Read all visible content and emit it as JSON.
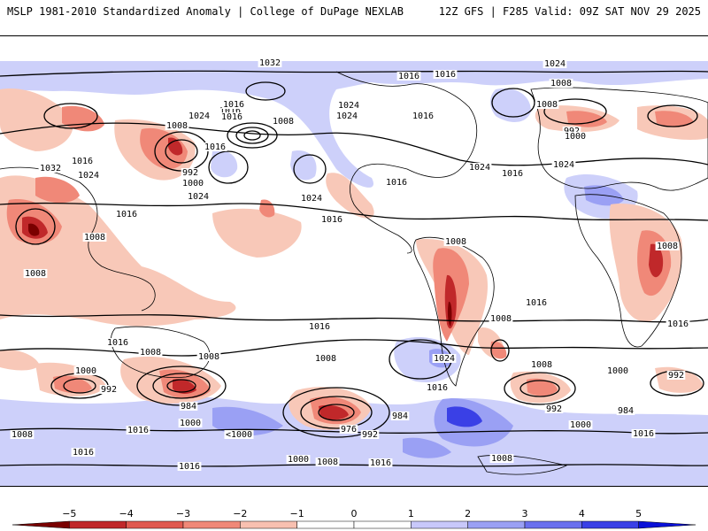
{
  "header": {
    "left_title": "MSLP 1981-2010 Standardized Anomaly | College of DuPage NEXLAB",
    "right_title": "12Z GFS | F285 Valid: 09Z SAT NOV 29 2025"
  },
  "map": {
    "isobar_labels": [
      {
        "id": "l1032a",
        "text": "1032"
      },
      {
        "id": "l1024a",
        "text": "1024"
      },
      {
        "id": "l1016a",
        "text": "1016"
      },
      {
        "id": "l1008a",
        "text": "1008"
      },
      {
        "id": "l1024b",
        "text": "1024"
      },
      {
        "id": "l1016b",
        "text": "1016"
      },
      {
        "id": "l1008b",
        "text": "1008"
      },
      {
        "id": "l1016c",
        "text": "1016"
      },
      {
        "id": "l1032b",
        "text": "1032"
      },
      {
        "id": "l1024c",
        "text": "1024"
      },
      {
        "id": "l1008c",
        "text": "1008"
      },
      {
        "id": "l992a",
        "text": "992"
      },
      {
        "id": "l1000a",
        "text": "1000"
      },
      {
        "id": "l1016d",
        "text": "1016"
      },
      {
        "id": "l1024d",
        "text": "1024"
      },
      {
        "id": "l1024e",
        "text": "1024"
      },
      {
        "id": "l1016e",
        "text": "1016"
      },
      {
        "id": "l1008d",
        "text": "1008"
      },
      {
        "id": "l1016f",
        "text": "1016"
      },
      {
        "id": "l1024f",
        "text": "1024"
      },
      {
        "id": "l1016g",
        "text": "1016"
      },
      {
        "id": "l1016h",
        "text": "1016"
      },
      {
        "id": "l1016i",
        "text": "1016"
      },
      {
        "id": "l1024g",
        "text": "1024"
      },
      {
        "id": "l1016j",
        "text": "1016"
      },
      {
        "id": "l1024h",
        "text": "1024"
      },
      {
        "id": "l1008e",
        "text": "1008"
      },
      {
        "id": "l1008f",
        "text": "1008"
      },
      {
        "id": "l992b",
        "text": "992"
      },
      {
        "id": "l1000b",
        "text": "1000"
      },
      {
        "id": "l1024i",
        "text": "1024"
      },
      {
        "id": "l1016k",
        "text": "1016"
      },
      {
        "id": "l1008g",
        "text": "1008"
      },
      {
        "id": "l1016l",
        "text": "1016"
      },
      {
        "id": "l1008h",
        "text": "1008"
      },
      {
        "id": "l1008i",
        "text": "1008"
      },
      {
        "id": "l1016m",
        "text": "1016"
      },
      {
        "id": "l1016n",
        "text": "1016"
      },
      {
        "id": "l1008j",
        "text": "1008"
      },
      {
        "id": "l1016o",
        "text": "1016"
      },
      {
        "id": "l1008k",
        "text": "1008"
      },
      {
        "id": "l1000c",
        "text": "1000"
      },
      {
        "id": "l992c",
        "text": "992"
      },
      {
        "id": "l984a",
        "text": "984"
      },
      {
        "id": "l1008l",
        "text": "1008"
      },
      {
        "id": "l1024j",
        "text": "1024"
      },
      {
        "id": "l1016p",
        "text": "1016"
      },
      {
        "id": "l984b",
        "text": "984"
      },
      {
        "id": "l976",
        "text": "976"
      },
      {
        "id": "l992d",
        "text": "992"
      },
      {
        "id": "l1008m",
        "text": "1008"
      },
      {
        "id": "l1000d",
        "text": "1000"
      },
      {
        "id": "l992e",
        "text": "992"
      },
      {
        "id": "l992f",
        "text": "992"
      },
      {
        "id": "l984c",
        "text": "984"
      },
      {
        "id": "l1000e",
        "text": "1000"
      },
      {
        "id": "l1016q",
        "text": "1016"
      },
      {
        "id": "l1000f",
        "text": "1000"
      },
      {
        "id": "l1008n",
        "text": "1008"
      },
      {
        "id": "l1016r",
        "text": "1016"
      },
      {
        "id": "l1000g",
        "text": "<1000"
      },
      {
        "id": "l1016s",
        "text": "1016"
      },
      {
        "id": "l1016t",
        "text": "1016"
      },
      {
        "id": "l1000h",
        "text": "1000"
      },
      {
        "id": "l1008o",
        "text": "1008"
      },
      {
        "id": "l1016u",
        "text": "1016"
      },
      {
        "id": "l1008p",
        "text": "1008"
      },
      {
        "id": "l1016v",
        "text": "1016"
      }
    ]
  },
  "colorbar": {
    "ticks": [
      "−5",
      "−4",
      "−3",
      "−2",
      "−1",
      "0",
      "1",
      "2",
      "3",
      "4",
      "5"
    ],
    "colors": {
      "neg5": "#7a0000",
      "neg4": "#c0282a",
      "neg3": "#e05a50",
      "neg2": "#f08878",
      "neg1": "#f8c0b0",
      "zero": "#ffffff",
      "pos1": "#c8c8fa",
      "pos2": "#9aa0f4",
      "pos3": "#6a70ee",
      "pos4": "#3a40e6",
      "pos5": "#0a10d8"
    }
  }
}
